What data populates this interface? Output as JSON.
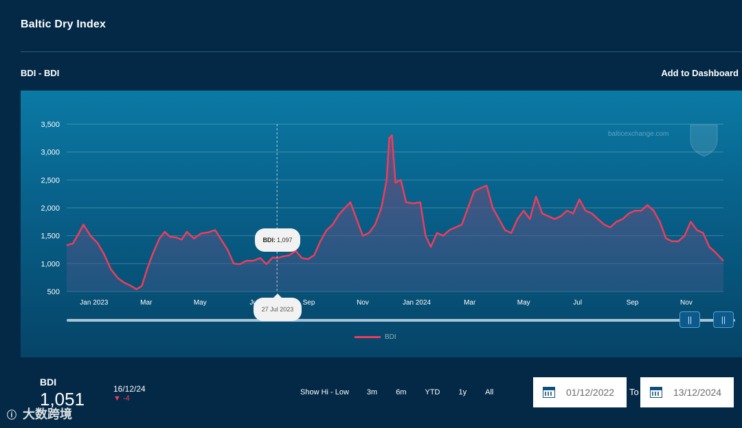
{
  "page": {
    "title": "Baltic Dry Index",
    "subtitle": "BDI - BDI",
    "add_dashboard": "Add to Dashboard"
  },
  "watermark": "balticexchange.com",
  "tooltip": {
    "label": "BDI:",
    "value": "1,097",
    "date": "27 Jul 2023"
  },
  "legend": {
    "name": "BDI",
    "color": "#ef3d5b"
  },
  "summary": {
    "label": "BDI",
    "value": "1,051",
    "date": "16/12/24",
    "change": "-4",
    "change_icon": "triangle-down"
  },
  "ranges": [
    "Show Hi - Low",
    "3m",
    "6m",
    "YTD",
    "1y",
    "All"
  ],
  "date_range": {
    "from": "01/12/2022",
    "to_label": "To",
    "to": "13/12/2024"
  },
  "brand": {
    "watermark_text": "大数跨境"
  },
  "chart_data": {
    "type": "area",
    "title": "",
    "ylabel": "",
    "ylim": [
      500,
      3500
    ],
    "yticks": [
      500,
      1000,
      1500,
      2000,
      2500,
      3000,
      3500
    ],
    "ytick_labels": [
      "500",
      "1,000",
      "1,500",
      "2,000",
      "2,500",
      "3,000",
      "3,500"
    ],
    "xlim": [
      "2022-12-01",
      "2024-12-13"
    ],
    "xticks": [
      {
        "date": "2023-01-01",
        "label": "Jan 2023"
      },
      {
        "date": "2023-03-01",
        "label": "Mar"
      },
      {
        "date": "2023-05-01",
        "label": "May"
      },
      {
        "date": "2023-07-01",
        "label": "Jul"
      },
      {
        "date": "2023-09-01",
        "label": "Sep"
      },
      {
        "date": "2023-11-01",
        "label": "Nov"
      },
      {
        "date": "2024-01-01",
        "label": "Jan 2024"
      },
      {
        "date": "2024-03-01",
        "label": "Mar"
      },
      {
        "date": "2024-05-01",
        "label": "May"
      },
      {
        "date": "2024-07-01",
        "label": "Jul"
      },
      {
        "date": "2024-09-01",
        "label": "Sep"
      },
      {
        "date": "2024-11-01",
        "label": "Nov"
      }
    ],
    "grid": true,
    "series": [
      {
        "name": "BDI",
        "color": "#ef3d5b",
        "points": [
          [
            "2022-12-01",
            1330
          ],
          [
            "2022-12-08",
            1360
          ],
          [
            "2022-12-15",
            1550
          ],
          [
            "2022-12-20",
            1700
          ],
          [
            "2022-12-28",
            1500
          ],
          [
            "2023-01-05",
            1370
          ],
          [
            "2023-01-12",
            1180
          ],
          [
            "2023-01-20",
            900
          ],
          [
            "2023-01-28",
            740
          ],
          [
            "2023-02-04",
            660
          ],
          [
            "2023-02-12",
            600
          ],
          [
            "2023-02-18",
            540
          ],
          [
            "2023-02-24",
            600
          ],
          [
            "2023-03-02",
            900
          ],
          [
            "2023-03-09",
            1200
          ],
          [
            "2023-03-16",
            1450
          ],
          [
            "2023-03-22",
            1570
          ],
          [
            "2023-03-28",
            1480
          ],
          [
            "2023-04-04",
            1470
          ],
          [
            "2023-04-10",
            1430
          ],
          [
            "2023-04-16",
            1570
          ],
          [
            "2023-04-24",
            1450
          ],
          [
            "2023-05-02",
            1540
          ],
          [
            "2023-05-10",
            1560
          ],
          [
            "2023-05-18",
            1600
          ],
          [
            "2023-05-24",
            1450
          ],
          [
            "2023-06-01",
            1250
          ],
          [
            "2023-06-08",
            1000
          ],
          [
            "2023-06-15",
            990
          ],
          [
            "2023-06-22",
            1050
          ],
          [
            "2023-06-30",
            1050
          ],
          [
            "2023-07-08",
            1100
          ],
          [
            "2023-07-15",
            990
          ],
          [
            "2023-07-22",
            1110
          ],
          [
            "2023-07-27",
            1097
          ],
          [
            "2023-08-03",
            1130
          ],
          [
            "2023-08-10",
            1150
          ],
          [
            "2023-08-17",
            1230
          ],
          [
            "2023-08-24",
            1100
          ],
          [
            "2023-08-31",
            1080
          ],
          [
            "2023-09-07",
            1150
          ],
          [
            "2023-09-14",
            1400
          ],
          [
            "2023-09-21",
            1600
          ],
          [
            "2023-09-28",
            1700
          ],
          [
            "2023-10-05",
            1880
          ],
          [
            "2023-10-12",
            2000
          ],
          [
            "2023-10-18",
            2100
          ],
          [
            "2023-10-25",
            1800
          ],
          [
            "2023-11-01",
            1500
          ],
          [
            "2023-11-08",
            1550
          ],
          [
            "2023-11-15",
            1700
          ],
          [
            "2023-11-22",
            2000
          ],
          [
            "2023-11-28",
            2500
          ],
          [
            "2023-12-01",
            3250
          ],
          [
            "2023-12-04",
            3300
          ],
          [
            "2023-12-08",
            2450
          ],
          [
            "2023-12-14",
            2500
          ],
          [
            "2023-12-20",
            2100
          ],
          [
            "2023-12-28",
            2080
          ],
          [
            "2024-01-05",
            2100
          ],
          [
            "2024-01-11",
            1500
          ],
          [
            "2024-01-17",
            1300
          ],
          [
            "2024-01-24",
            1550
          ],
          [
            "2024-01-31",
            1500
          ],
          [
            "2024-02-07",
            1600
          ],
          [
            "2024-02-14",
            1650
          ],
          [
            "2024-02-21",
            1700
          ],
          [
            "2024-02-28",
            2000
          ],
          [
            "2024-03-06",
            2300
          ],
          [
            "2024-03-13",
            2350
          ],
          [
            "2024-03-20",
            2400
          ],
          [
            "2024-03-27",
            2000
          ],
          [
            "2024-04-03",
            1800
          ],
          [
            "2024-04-10",
            1600
          ],
          [
            "2024-04-17",
            1550
          ],
          [
            "2024-04-24",
            1800
          ],
          [
            "2024-05-01",
            1950
          ],
          [
            "2024-05-08",
            1800
          ],
          [
            "2024-05-15",
            2200
          ],
          [
            "2024-05-22",
            1900
          ],
          [
            "2024-05-29",
            1850
          ],
          [
            "2024-06-05",
            1800
          ],
          [
            "2024-06-12",
            1850
          ],
          [
            "2024-06-19",
            1950
          ],
          [
            "2024-06-26",
            1900
          ],
          [
            "2024-07-03",
            2150
          ],
          [
            "2024-07-10",
            1950
          ],
          [
            "2024-07-17",
            1900
          ],
          [
            "2024-07-24",
            1800
          ],
          [
            "2024-07-31",
            1700
          ],
          [
            "2024-08-07",
            1650
          ],
          [
            "2024-08-14",
            1750
          ],
          [
            "2024-08-21",
            1800
          ],
          [
            "2024-08-28",
            1900
          ],
          [
            "2024-09-04",
            1950
          ],
          [
            "2024-09-11",
            1950
          ],
          [
            "2024-09-18",
            2050
          ],
          [
            "2024-09-25",
            1950
          ],
          [
            "2024-10-02",
            1750
          ],
          [
            "2024-10-09",
            1450
          ],
          [
            "2024-10-16",
            1400
          ],
          [
            "2024-10-23",
            1400
          ],
          [
            "2024-10-30",
            1500
          ],
          [
            "2024-11-06",
            1750
          ],
          [
            "2024-11-13",
            1600
          ],
          [
            "2024-11-20",
            1550
          ],
          [
            "2024-11-27",
            1300
          ],
          [
            "2024-12-04",
            1200
          ],
          [
            "2024-12-10",
            1100
          ],
          [
            "2024-12-13",
            1051
          ]
        ]
      }
    ]
  }
}
